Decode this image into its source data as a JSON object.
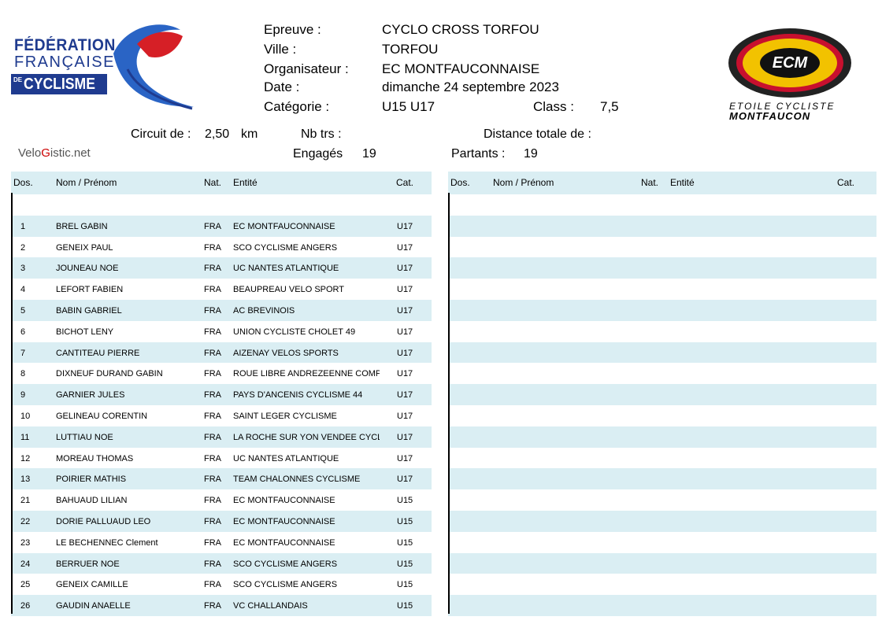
{
  "logos": {
    "ffc": {
      "line1": "FÉDÉRATION",
      "line2": "FRANÇAISE",
      "de": "DE",
      "line3": "CYCLISME"
    },
    "ecm": {
      "initials": "ECM",
      "line1": "ETOILE CYCLISTE",
      "line2": "MONTFAUCON"
    }
  },
  "header": {
    "epreuve_label": "Epreuve :",
    "epreuve": "CYCLO CROSS TORFOU",
    "ville_label": "Ville :",
    "ville": "TORFOU",
    "organisateur_label": "Organisateur :",
    "organisateur": "EC MONTFAUCONNAISE",
    "date_label": "Date :",
    "date": "dimanche 24 septembre 2023",
    "categorie_label": "Catégorie :",
    "categorie": "U15 U17",
    "class_label": "Class :",
    "class": "7,5"
  },
  "info": {
    "circuit_label": "Circuit de :",
    "circuit": "2,50",
    "circuit_unit": "km",
    "nbtrs_label": "Nb trs :",
    "distance_label": "Distance totale de :",
    "engages_label": "Engagés",
    "engages": "19",
    "partants_label": "Partants :",
    "partants": "19"
  },
  "watermark": {
    "part1": "Velo",
    "part2": "G",
    "part3": "istic.net"
  },
  "columns": {
    "dos": "Dos.",
    "nom": "Nom / Prénom",
    "nat": "Nat.",
    "entite": "Entité",
    "cat": "Cat."
  },
  "riders": [
    {
      "dos": "",
      "nom": "",
      "nat": "",
      "entite": "",
      "cat": ""
    },
    {
      "dos": "1",
      "nom": "BREL  GABIN",
      "nat": "FRA",
      "entite": "EC MONTFAUCONNAISE",
      "cat": "U17"
    },
    {
      "dos": "2",
      "nom": "GENEIX  PAUL",
      "nat": "FRA",
      "entite": "SCO CYCLISME ANGERS",
      "cat": "U17"
    },
    {
      "dos": "3",
      "nom": "JOUNEAU  NOE",
      "nat": "FRA",
      "entite": "UC NANTES ATLANTIQUE",
      "cat": "U17"
    },
    {
      "dos": "4",
      "nom": "LEFORT  FABIEN",
      "nat": "FRA",
      "entite": "BEAUPREAU VELO SPORT",
      "cat": "U17"
    },
    {
      "dos": "5",
      "nom": "BABIN  GABRIEL",
      "nat": "FRA",
      "entite": "AC BREVINOIS",
      "cat": "U17"
    },
    {
      "dos": "6",
      "nom": "BICHOT  LENY",
      "nat": "FRA",
      "entite": "UNION CYCLISTE CHOLET 49",
      "cat": "U17"
    },
    {
      "dos": "7",
      "nom": "CANTITEAU  PIERRE",
      "nat": "FRA",
      "entite": "AIZENAY VELOS SPORTS",
      "cat": "U17"
    },
    {
      "dos": "8",
      "nom": "DIXNEUF DURAND  GABIN",
      "nat": "FRA",
      "entite": "ROUE LIBRE ANDREZEENNE COMP",
      "cat": "U17"
    },
    {
      "dos": "9",
      "nom": "GARNIER  JULES",
      "nat": "FRA",
      "entite": "PAYS D'ANCENIS CYCLISME 44",
      "cat": "U17"
    },
    {
      "dos": "10",
      "nom": "GELINEAU  CORENTIN",
      "nat": "FRA",
      "entite": "SAINT LEGER CYCLISME",
      "cat": "U17"
    },
    {
      "dos": "11",
      "nom": "LUTTIAU  NOE",
      "nat": "FRA",
      "entite": "LA ROCHE SUR YON VENDEE CYCL",
      "cat": "U17"
    },
    {
      "dos": "12",
      "nom": "MOREAU  THOMAS",
      "nat": "FRA",
      "entite": "UC NANTES ATLANTIQUE",
      "cat": "U17"
    },
    {
      "dos": "13",
      "nom": "POIRIER  MATHIS",
      "nat": "FRA",
      "entite": "TEAM CHALONNES CYCLISME",
      "cat": "U17"
    },
    {
      "dos": "21",
      "nom": "BAHUAUD  LILIAN",
      "nat": "FRA",
      "entite": "EC MONTFAUCONNAISE",
      "cat": "U15"
    },
    {
      "dos": "22",
      "nom": "DORIE PALLUAUD  LEO",
      "nat": "FRA",
      "entite": "EC MONTFAUCONNAISE",
      "cat": "U15"
    },
    {
      "dos": "23",
      "nom": "LE BECHENNEC  Clement",
      "nat": "FRA",
      "entite": "EC MONTFAUCONNAISE",
      "cat": "U15"
    },
    {
      "dos": "24",
      "nom": "BERRUER  NOE",
      "nat": "FRA",
      "entite": "SCO CYCLISME ANGERS",
      "cat": "U15"
    },
    {
      "dos": "25",
      "nom": "GENEIX  CAMILLE",
      "nat": "FRA",
      "entite": "SCO CYCLISME ANGERS",
      "cat": "U15"
    },
    {
      "dos": "26",
      "nom": "GAUDIN  ANAELLE",
      "nat": "FRA",
      "entite": "VC CHALLANDAIS",
      "cat": "U15"
    }
  ],
  "colors": {
    "row_alt": "#daeef3",
    "ffc_blue": "#1f3b8f",
    "ecm_yellow": "#f2c200",
    "ecm_red": "#c8102e"
  }
}
